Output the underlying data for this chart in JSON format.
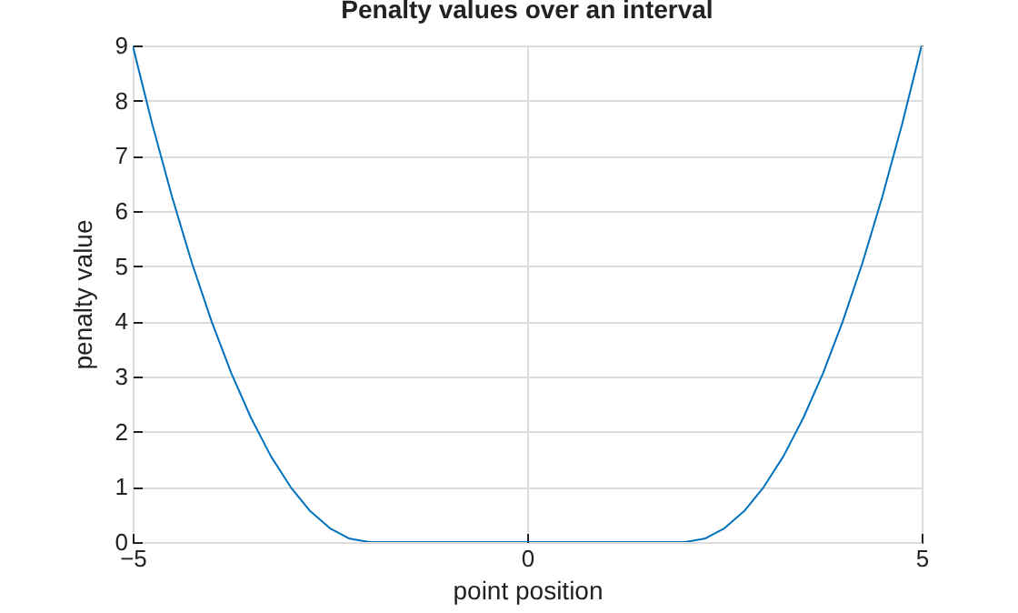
{
  "chart_data": {
    "type": "line",
    "title": "Penalty values over an interval",
    "xlabel": "point position",
    "ylabel": "penalty value",
    "x": [
      -5,
      -4.75,
      -4.5,
      -4.25,
      -4,
      -3.75,
      -3.5,
      -3.25,
      -3,
      -2.75,
      -2.5,
      -2.25,
      -2,
      0,
      2,
      2.25,
      2.5,
      2.75,
      3,
      3.25,
      3.5,
      3.75,
      4,
      4.25,
      4.5,
      4.75,
      5
    ],
    "series": [
      {
        "color": "#0072bd",
        "values": [
          9,
          7.56,
          6.25,
          5.06,
          4,
          3.06,
          2.25,
          1.56,
          1,
          0.56,
          0.25,
          0.06,
          0,
          0,
          0,
          0.06,
          0.25,
          0.56,
          1,
          1.56,
          2.25,
          3.06,
          4,
          5.06,
          6.25,
          7.56,
          9
        ]
      }
    ],
    "xlim": [
      -5,
      5
    ],
    "xticks": [
      -5,
      0,
      5
    ],
    "ylim": [
      0,
      9
    ],
    "yticks": [
      0,
      1,
      2,
      3,
      4,
      5,
      6,
      7,
      8,
      9
    ],
    "grid": true
  }
}
